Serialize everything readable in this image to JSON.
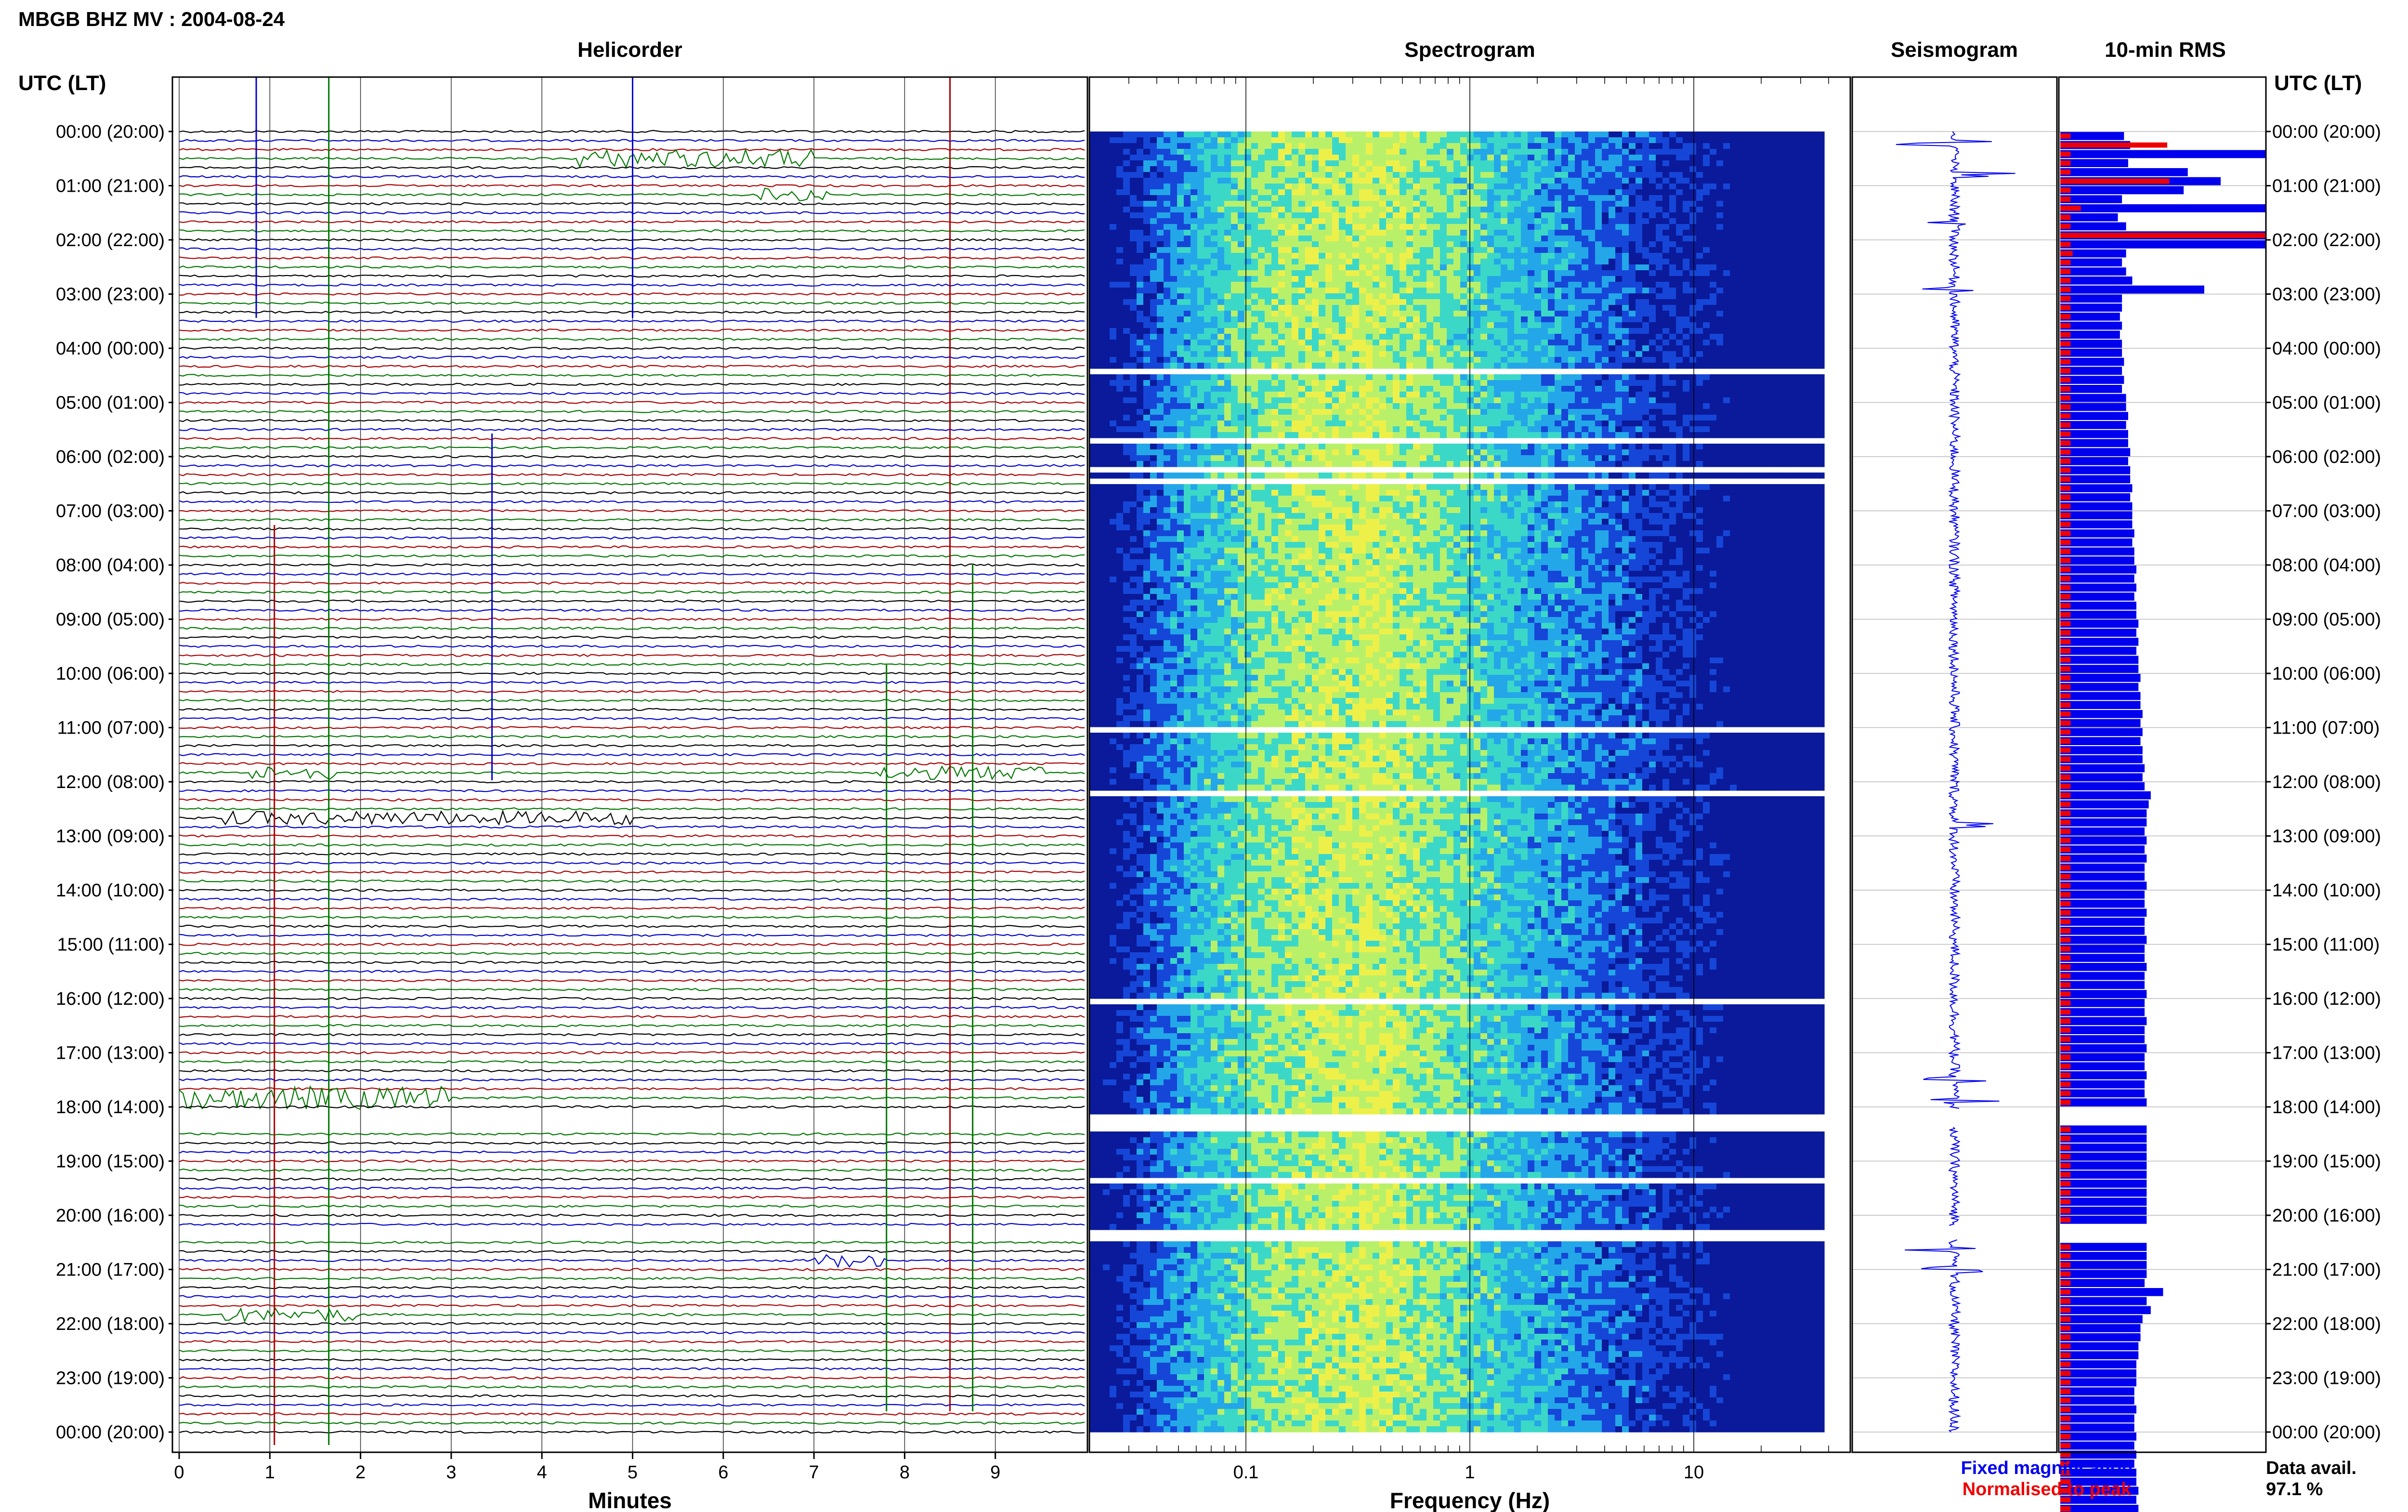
{
  "header": {
    "title": "MBGB BHZ MV : 2004-08-24"
  },
  "panels": {
    "helicorder": "Helicorder",
    "spectrogram": "Spectrogram",
    "seismogram": "Seismogram",
    "rms": "10-min RMS"
  },
  "time_axis": {
    "label": "UTC (LT)",
    "ticks": [
      "00:00 (20:00)",
      "01:00 (21:00)",
      "02:00 (22:00)",
      "03:00 (23:00)",
      "04:00 (00:00)",
      "05:00 (01:00)",
      "06:00 (02:00)",
      "07:00 (03:00)",
      "08:00 (04:00)",
      "09:00 (05:00)",
      "10:00 (06:00)",
      "11:00 (07:00)",
      "12:00 (08:00)",
      "13:00 (09:00)",
      "14:00 (10:00)",
      "15:00 (11:00)",
      "16:00 (12:00)",
      "17:00 (13:00)",
      "18:00 (14:00)",
      "19:00 (15:00)",
      "20:00 (16:00)",
      "21:00 (17:00)",
      "22:00 (18:00)",
      "23:00 (19:00)",
      "00:00 (20:00)"
    ]
  },
  "legend": {
    "fixed": "Fixed magnification",
    "normalised": "Normalised to peak",
    "fixed_color": "#0000ee",
    "normalised_color": "#ee0000"
  },
  "availability": {
    "label": "Data avail.",
    "value": "97.1 %"
  },
  "chart_data": [
    {
      "type": "line",
      "panel": "Helicorder",
      "xlabel": "Minutes",
      "x_ticks": [
        "0",
        "1",
        "2",
        "3",
        "4",
        "5",
        "6",
        "7",
        "8",
        "9"
      ],
      "xlim": [
        0,
        10
      ],
      "rows_per_hour": 6,
      "trace_colors": [
        "#000000",
        "#0000cc",
        "#aa0000",
        "#007700"
      ],
      "events": [
        {
          "hour": 0.5,
          "start_min": 4.4,
          "end_min": 7.0,
          "amp": 3
        },
        {
          "hour": 1.2,
          "start_min": 6.4,
          "end_min": 7.2,
          "amp": 2
        },
        {
          "hour": 11.8,
          "start_min": 0.8,
          "end_min": 1.7,
          "amp": 2
        },
        {
          "hour": 11.9,
          "start_min": 7.7,
          "end_min": 9.6,
          "amp": 2
        },
        {
          "hour": 12.6,
          "start_min": 0.5,
          "end_min": 5.0,
          "amp": 2
        },
        {
          "hour": 17.9,
          "start_min": 0.0,
          "end_min": 3.0,
          "amp": 4
        },
        {
          "hour": 20.8,
          "start_min": 7.0,
          "end_min": 7.8,
          "amp": 2
        },
        {
          "hour": 21.8,
          "start_min": 0.5,
          "end_min": 2.0,
          "amp": 2
        }
      ],
      "gaps_hours": [
        [
          18.05,
          18.35
        ],
        [
          20.2,
          20.45
        ]
      ]
    },
    {
      "type": "heatmap",
      "panel": "Spectrogram",
      "xlabel": "Frequency (Hz)",
      "x_scale": "log",
      "xlim": [
        0.02,
        50
      ],
      "x_ticks": [
        "0.1",
        "1",
        "10"
      ],
      "x_tick_values": [
        0.1,
        1,
        10
      ],
      "colormap": [
        "#0a1a9a",
        "#1646d8",
        "#23a7e8",
        "#3bd8c8",
        "#b9f06a",
        "#eef04a"
      ],
      "peak_frequency_hz": 0.3,
      "gaps_hours": [
        [
          3.85,
          3.93
        ],
        [
          4.35,
          4.43
        ],
        [
          5.6,
          5.68
        ],
        [
          6.15,
          6.22
        ],
        [
          6.35,
          6.42
        ],
        [
          6.75,
          6.82
        ],
        [
          7.5,
          7.57
        ],
        [
          10.95,
          11.02
        ],
        [
          12.15,
          12.22
        ],
        [
          15.95,
          16.02
        ],
        [
          18.05,
          18.35
        ],
        [
          19.25,
          19.32
        ],
        [
          20.2,
          20.45
        ],
        [
          22.3,
          22.37
        ]
      ]
    },
    {
      "type": "line",
      "panel": "Seismogram",
      "line_color": "#0000ee",
      "events_hours": [
        0.2,
        0.8,
        1.7,
        2.9,
        12.8,
        17.5,
        17.9,
        20.6,
        21.0
      ]
    },
    {
      "type": "bar",
      "panel": "10-min RMS",
      "unit_intervals_per_hour": 6,
      "xlim": [
        0,
        1
      ],
      "fixed_magnification": [
        0.31,
        0.34,
        1.0,
        0.33,
        0.62,
        0.78,
        0.6,
        0.3,
        1.0,
        0.28,
        0.32,
        1.0,
        1.0,
        0.32,
        0.3,
        0.32,
        0.35,
        0.7,
        0.3,
        0.3,
        0.29,
        0.3,
        0.29,
        0.3,
        0.3,
        0.31,
        0.3,
        0.31,
        0.3,
        0.32,
        0.32,
        0.33,
        0.32,
        0.33,
        0.33,
        0.34,
        0.33,
        0.34,
        0.34,
        0.35,
        0.34,
        0.35,
        0.35,
        0.35,
        0.36,
        0.35,
        0.36,
        0.36,
        0.37,
        0.36,
        0.37,
        0.36,
        0.37,
        0.37,
        0.38,
        0.37,
        0.38,
        0.37,
        0.38,
        0.38,
        0.39,
        0.38,
        0.39,
        0.39,
        0.4,
        0.39,
        0.4,
        0.39,
        0.4,
        0.4,
        0.41,
        0.4,
        0.41,
        0.44,
        0.43,
        0.42,
        0.42,
        0.41,
        0.42,
        0.41,
        0.42,
        0.41,
        0.41,
        0.42,
        0.41,
        0.41,
        0.42,
        0.41,
        0.41,
        0.42,
        0.41,
        0.41,
        0.42,
        0.41,
        0.41,
        0.42,
        0.41,
        0.41,
        0.42,
        0.41,
        0.41,
        0.42,
        0.41,
        0.41,
        0.42,
        0.41,
        0.41,
        0.42,
        0.42,
        0.42,
        0.42,
        0.42,
        0.42,
        0.42,
        0.42,
        0.42,
        0.42,
        0.42,
        0.42,
        0.42,
        0.42,
        0.42,
        0.42,
        0.42,
        0.42,
        0.42,
        0.42,
        0.41,
        0.5,
        0.42,
        0.44,
        0.4,
        0.39,
        0.39,
        0.38,
        0.38,
        0.37,
        0.37,
        0.37,
        0.36,
        0.36,
        0.37,
        0.36,
        0.36,
        0.37,
        0.36,
        0.37,
        0.36,
        0.37,
        0.37,
        0.38,
        0.37,
        0.38,
        0.37,
        0.38,
        0.38,
        0.39,
        0.38,
        0.39,
        0.39,
        0.4,
        0.39,
        0.4,
        0.4,
        0.41,
        0.4,
        0.41,
        0.41,
        0.42,
        0.41,
        0.42,
        0.42,
        0.43,
        0.42,
        0.43,
        0.43,
        0.44,
        0.43,
        0.44,
        0.44,
        0.45,
        0.44,
        0.45,
        0.45,
        0.46,
        0.46,
        0.47,
        0.46,
        0.47,
        0.47,
        0.48,
        0.47,
        0.48,
        0.48,
        0.49,
        0.49,
        0.5,
        0.5,
        0.52,
        0.52,
        0.54,
        0.52,
        0.4,
        0.4,
        0.39,
        0.39,
        0.38,
        0.38,
        0.38,
        0.37,
        0.37,
        0.36,
        0.36,
        0.36,
        0.35,
        0.35,
        0.35,
        0.34,
        0.34,
        0.34,
        0.33,
        0.33,
        0.33,
        0.32,
        0.32,
        0.32,
        1.0,
        0.58,
        0.28,
        0.2,
        0.46,
        0.3,
        0.3,
        0.3,
        0.38,
        1.0,
        0.3,
        0.3,
        0.32,
        0.32,
        0.32,
        0.32,
        0.32,
        0.32,
        0.3,
        0.3,
        0.3,
        0.3,
        0.3,
        0.3,
        1.0,
        1.0,
        0.32,
        0.32,
        0.32,
        0.32
      ],
      "normalised_to_peak": [
        0.05,
        0.52,
        0.05,
        0.05,
        0.05,
        0.53,
        0.05,
        0.05,
        0.1,
        0.05,
        0.05,
        1.0,
        0.05,
        0.06,
        0.05,
        0.05,
        0.05,
        0.05,
        0.05,
        0.05,
        0.05,
        0.05,
        0.05,
        0.05,
        0.05,
        0.05,
        0.05,
        0.05,
        0.05,
        0.05,
        0.05,
        0.05,
        0.05,
        0.05,
        0.05,
        0.05,
        0.05,
        0.05,
        0.05,
        0.05,
        0.05,
        0.05,
        0.05,
        0.05,
        0.05,
        0.05,
        0.05,
        0.05,
        0.05,
        0.05,
        0.05,
        0.05,
        0.05,
        0.05,
        0.05,
        0.05,
        0.05,
        0.05,
        0.05,
        0.05,
        0.05,
        0.05,
        0.05,
        0.05,
        0.05,
        0.05,
        0.05,
        0.05,
        0.05,
        0.05,
        0.05,
        0.05,
        0.05,
        0.05,
        0.05,
        0.05,
        0.05,
        0.05,
        0.05,
        0.05,
        0.05,
        0.05,
        0.05,
        0.05,
        0.05,
        0.05,
        0.05,
        0.05,
        0.05,
        0.05,
        0.05,
        0.05,
        0.05,
        0.05,
        0.05,
        0.05,
        0.05,
        0.05,
        0.05,
        0.05,
        0.05,
        0.05,
        0.05,
        0.05,
        0.05,
        0.05,
        0.05,
        0.05,
        0.05,
        0.05,
        0.05,
        0.05,
        0.05,
        0.05,
        0.05,
        0.05,
        0.05,
        0.05,
        0.05,
        0.05,
        0.05,
        0.05,
        0.05,
        0.05,
        0.05,
        0.05,
        0.05,
        0.05,
        0.05,
        0.05,
        0.05,
        0.05,
        0.05,
        0.05,
        0.05,
        0.05,
        0.05,
        0.05,
        0.05,
        0.05,
        0.05,
        0.05,
        0.05,
        0.05,
        0.05,
        0.05,
        0.05,
        0.05,
        0.05,
        0.05,
        0.05,
        0.05,
        0.05,
        0.05,
        0.05,
        0.05,
        0.05,
        0.05,
        0.05,
        0.05,
        0.05,
        0.05,
        0.05,
        0.05,
        0.05,
        0.05,
        0.05,
        0.05,
        0.05,
        0.05,
        0.05,
        0.05,
        0.05,
        0.05,
        0.05,
        0.05,
        0.05,
        0.05,
        0.05,
        0.05,
        0.05,
        0.05,
        0.05,
        0.05,
        0.05,
        0.05,
        0.05,
        0.05,
        0.05,
        0.05,
        0.05,
        0.05,
        0.05,
        0.05,
        0.05,
        0.05,
        0.05,
        0.05,
        0.05,
        0.05,
        0.05,
        0.05,
        0.05,
        0.05,
        0.05,
        0.05,
        0.05,
        0.05,
        0.05,
        0.05,
        0.05,
        0.05,
        0.05,
        0.05,
        0.05,
        0.05,
        0.05,
        0.05,
        0.05,
        0.05,
        0.05,
        0.05,
        0.05,
        0.05,
        0.05,
        0.05,
        0.05,
        0.05,
        0.05,
        0.05,
        0.7,
        0.05,
        0.05,
        0.05,
        0.16,
        0.05,
        0.05,
        0.05,
        0.05,
        0.05,
        0.58,
        0.05,
        0.05,
        0.05,
        0.05,
        0.05,
        0.05,
        0.05,
        0.05,
        0.05,
        0.05,
        0.05,
        0.05,
        0.05,
        0.05,
        1.0,
        0.05,
        0.05,
        0.05,
        0.05
      ]
    }
  ]
}
